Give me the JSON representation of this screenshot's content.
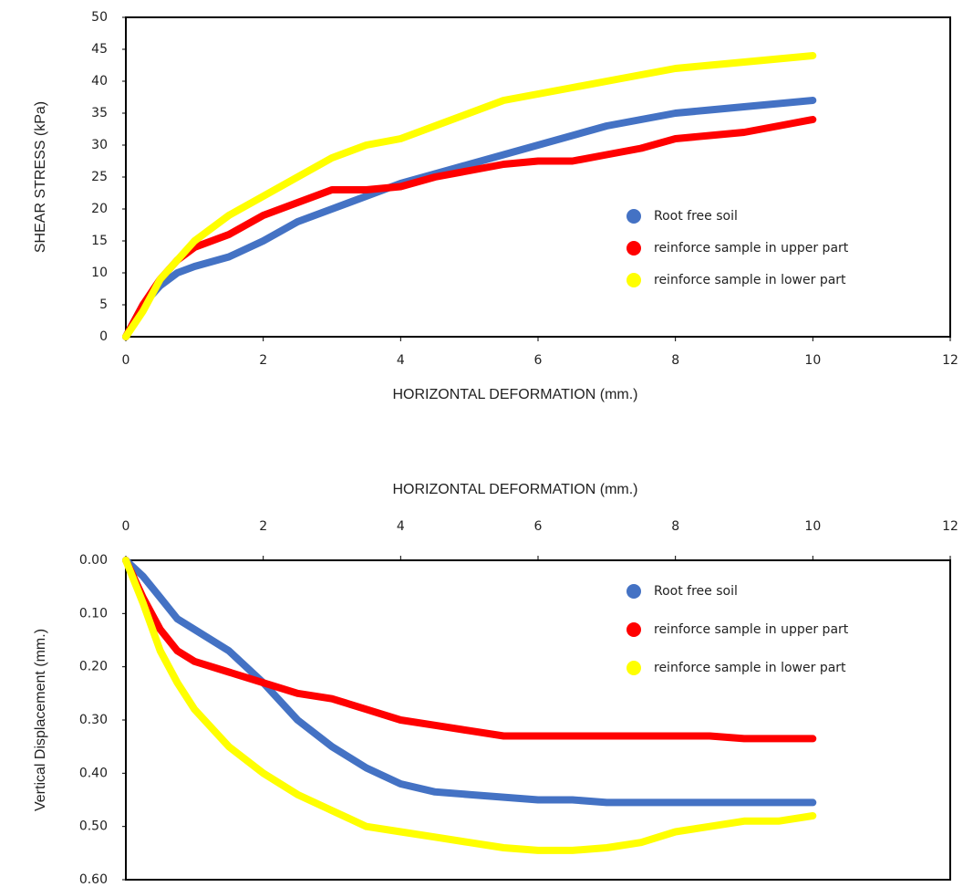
{
  "chart_data": [
    {
      "type": "line",
      "xlabel": "HORIZONTAL DEFORMATION (mm.)",
      "ylabel": "SHEAR STRESS (kPa)",
      "x": [
        0,
        0.25,
        0.5,
        0.75,
        1,
        1.5,
        2,
        2.5,
        3,
        3.5,
        4,
        4.5,
        5,
        5.5,
        6,
        6.5,
        7,
        7.5,
        8,
        8.5,
        9,
        9.5,
        10
      ],
      "series": [
        {
          "name": "Root free soil",
          "color": "#4472c4",
          "values": [
            0,
            5,
            8,
            10,
            11,
            12.5,
            15,
            18,
            20,
            22,
            24,
            25.5,
            27,
            28.5,
            30,
            31.5,
            33,
            34,
            35,
            35.5,
            36,
            36.5,
            37
          ]
        },
        {
          "name": "reinforce sample in upper part",
          "color": "#ff0000",
          "values": [
            0,
            5,
            9,
            12,
            14,
            16,
            19,
            21,
            23,
            23,
            23.5,
            25,
            26,
            27,
            27.5,
            27.5,
            28.5,
            29.5,
            31,
            31.5,
            32,
            33,
            34
          ]
        },
        {
          "name": "reinforce sample in lower part",
          "color": "#ffff00",
          "values": [
            0,
            4,
            9,
            12,
            15,
            19,
            22,
            25,
            28,
            30,
            31,
            33,
            35,
            37,
            38,
            39,
            40,
            41,
            42,
            42.5,
            43,
            43.5,
            44
          ]
        }
      ],
      "xlim": [
        0,
        12
      ],
      "xticks": [
        0,
        2,
        4,
        6,
        8,
        10,
        12
      ],
      "ylim": [
        0,
        50
      ],
      "yticks": [
        0,
        5,
        10,
        15,
        20,
        25,
        30,
        35,
        40,
        45,
        50
      ],
      "xaxis_position": "bottom",
      "y_inverted": false,
      "legend": "right"
    },
    {
      "type": "line",
      "xlabel": "HORIZONTAL DEFORMATION (mm.)",
      "ylabel": "Vertical Displacement (mm.)",
      "x": [
        0,
        0.25,
        0.5,
        0.75,
        1,
        1.5,
        2,
        2.5,
        3,
        3.5,
        4,
        4.5,
        5,
        5.5,
        6,
        6.5,
        7,
        7.5,
        8,
        8.5,
        9,
        9.5,
        10
      ],
      "series": [
        {
          "name": "Root free soil",
          "color": "#4472c4",
          "values": [
            0,
            0.03,
            0.07,
            0.11,
            0.13,
            0.17,
            0.23,
            0.3,
            0.35,
            0.39,
            0.42,
            0.435,
            0.44,
            0.445,
            0.45,
            0.45,
            0.455,
            0.455,
            0.455,
            0.455,
            0.455,
            0.455,
            0.455
          ]
        },
        {
          "name": "reinforce sample in upper part",
          "color": "#ff0000",
          "values": [
            0,
            0.07,
            0.13,
            0.17,
            0.19,
            0.21,
            0.23,
            0.25,
            0.26,
            0.28,
            0.3,
            0.31,
            0.32,
            0.33,
            0.33,
            0.33,
            0.33,
            0.33,
            0.33,
            0.33,
            0.335,
            0.335,
            0.335
          ]
        },
        {
          "name": "reinforce sample in lower part",
          "color": "#ffff00",
          "values": [
            0,
            0.08,
            0.17,
            0.23,
            0.28,
            0.35,
            0.4,
            0.44,
            0.47,
            0.5,
            0.51,
            0.52,
            0.53,
            0.54,
            0.545,
            0.545,
            0.54,
            0.53,
            0.51,
            0.5,
            0.49,
            0.49,
            0.48
          ]
        }
      ],
      "xlim": [
        0,
        12
      ],
      "xticks": [
        0,
        2,
        4,
        6,
        8,
        10,
        12
      ],
      "ylim": [
        0,
        0.6
      ],
      "yticks": [
        {
          "value": 0,
          "label": "0.00"
        },
        {
          "value": 0.1,
          "label": "0.10"
        },
        {
          "value": 0.2,
          "label": "0.20"
        },
        {
          "value": 0.3,
          "label": "0.30"
        },
        {
          "value": 0.4,
          "label": "0.40"
        },
        {
          "value": 0.5,
          "label": "0.50"
        },
        {
          "value": 0.6,
          "label": "0.60"
        }
      ],
      "xaxis_position": "top",
      "y_inverted": true,
      "legend": "right"
    }
  ]
}
